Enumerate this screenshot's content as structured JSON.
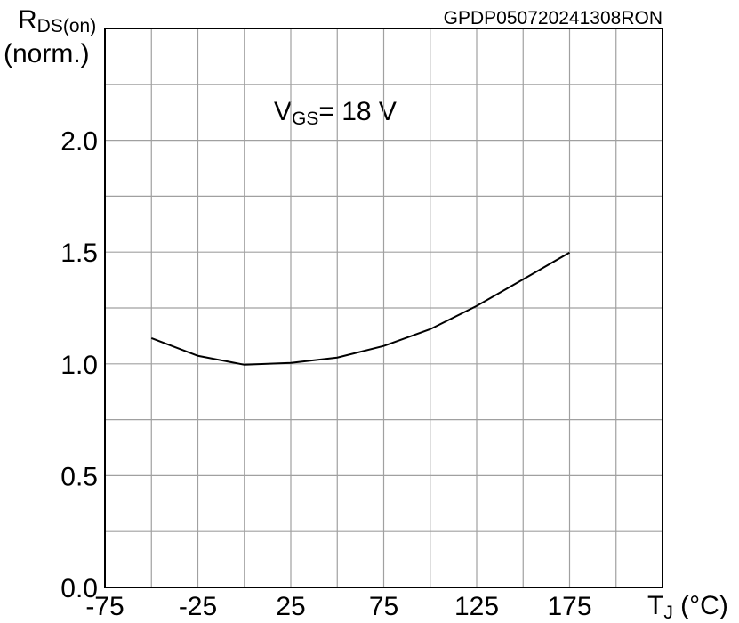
{
  "chart_data": {
    "type": "line",
    "title": "GPDP050720241308RON",
    "y_label": {
      "main": "R",
      "sub": "DS(on)",
      "line2": "(norm.)"
    },
    "x_label": {
      "main": "T",
      "sub": "J",
      "rest": " (°C)"
    },
    "annotation": {
      "main": "V",
      "sub": "GS",
      "rest": "= 18 V"
    },
    "x": [
      -50,
      -25,
      0,
      25,
      50,
      75,
      100,
      125,
      150,
      175
    ],
    "series": [
      {
        "color": "#000000",
        "values": [
          1.115,
          1.036,
          0.996,
          1.004,
          1.028,
          1.08,
          1.155,
          1.259,
          1.378,
          1.498
        ]
      }
    ],
    "xlim": [
      -75,
      225
    ],
    "ylim": [
      0,
      2.5
    ],
    "xticks": [
      -75,
      -25,
      25,
      75,
      125,
      175
    ],
    "yticks": [
      {
        "value": 0,
        "label": "0.0"
      },
      {
        "value": 0.5,
        "label": "0.5"
      },
      {
        "value": 1,
        "label": "1.0"
      },
      {
        "value": 1.5,
        "label": "1.5"
      },
      {
        "value": 2,
        "label": "2.0"
      }
    ],
    "x_grid": [
      -50,
      -25,
      0,
      25,
      50,
      75,
      100,
      125,
      150,
      175,
      200
    ],
    "y_grid": [
      0.25,
      0.5,
      0.75,
      1,
      1.25,
      1.5,
      1.75,
      2,
      2.25
    ],
    "grid": true
  }
}
